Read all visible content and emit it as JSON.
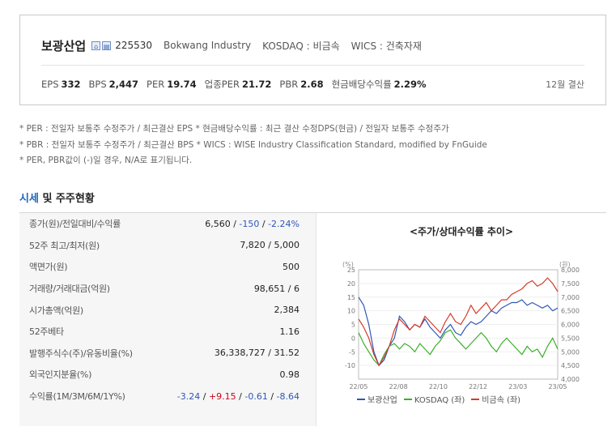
{
  "company": {
    "name": "보광산업",
    "code": "225530",
    "name_en": "Bokwang Industry",
    "market": "KOSDAQ : 비금속",
    "wics": "WICS : 건축자재",
    "fiscal": "12월 결산",
    "indicators": [
      {
        "label": "EPS",
        "value": "332"
      },
      {
        "label": "BPS",
        "value": "2,447"
      },
      {
        "label": "PER",
        "value": "19.74"
      },
      {
        "label": "업종PER",
        "value": "21.72"
      },
      {
        "label": "PBR",
        "value": "2.68"
      },
      {
        "label": "현금배당수익률",
        "value": "2.29%"
      }
    ]
  },
  "notes": [
    "* PER : 전일자 보통주 수정주가 / 최근결산 EPS * 현금배당수익률 : 최근 결산 수정DPS(현금) / 전일자 보통주 수정주가",
    "* PBR : 전일자 보통주 수정주가 / 최근결산 BPS * WICS : WISE Industry Classification Standard, modified by FnGuide",
    "* PER, PBR값이 (-)일 경우, N/A로 표기됩니다."
  ],
  "section": {
    "title_a": "시세",
    "title_b": " 및 주주현황"
  },
  "table": [
    {
      "label": "종가(원)/전일대비/수익률",
      "v1": "6,560",
      "s1": " / ",
      "v2": "-150",
      "s2": " / ",
      "v3": "-2.24%",
      "c2": "down",
      "c3": "down"
    },
    {
      "label": "52주 최고/최저(원)",
      "v1": "7,820 / 5,000"
    },
    {
      "label": "액면가(원)",
      "v1": "500"
    },
    {
      "label": "거래량/거래대금(억원)",
      "v1": "98,651 / 6"
    },
    {
      "label": "시가총액(억원)",
      "v1": "2,384"
    },
    {
      "label": "52주베타",
      "v1": "1.16"
    },
    {
      "label": "발행주식수(주)/유동비율(%)",
      "v1": "36,338,727 / 31.52"
    },
    {
      "label": "외국인지분율(%)",
      "v1": "0.98"
    },
    {
      "label": "수익률(1M/3M/6M/1Y%)",
      "returns": [
        {
          "t": "-3.24",
          "c": "down"
        },
        {
          "t": "+9.15",
          "c": "up"
        },
        {
          "t": "-0.61",
          "c": "down"
        },
        {
          "t": "-8.64",
          "c": "down"
        }
      ]
    }
  ],
  "chart_title": "<주가/상대수익률 추이>",
  "chart_data": {
    "type": "line",
    "left_unit": "(%)",
    "right_unit": "(원)",
    "left_ticks": [
      "25",
      "20",
      "15",
      "10",
      "5",
      "0",
      "-5",
      "-10"
    ],
    "right_ticks": [
      "8,000",
      "7,500",
      "7,000",
      "6,500",
      "6,000",
      "5,500",
      "5,000",
      "4,500",
      "4,000"
    ],
    "x_ticks": [
      "22/05",
      "22/08",
      "22/10",
      "22/12",
      "23/03",
      "23/05"
    ],
    "left_range": [
      -15,
      25
    ],
    "right_range": [
      4000,
      8000
    ],
    "series": [
      {
        "name": "보광산업",
        "axis": "left",
        "color": "#2f57b7",
        "values": [
          15,
          12,
          5,
          -5,
          -10,
          -8,
          -3,
          0,
          8,
          6,
          3,
          5,
          4,
          7,
          4,
          2,
          0,
          3,
          5,
          2,
          1,
          4,
          6,
          5,
          6,
          8,
          10,
          9,
          11,
          12,
          13,
          13,
          14,
          12,
          13,
          12,
          11,
          12,
          10,
          11
        ]
      },
      {
        "name": "KOSDAQ (좌)",
        "axis": "left",
        "color": "#3bae2b",
        "values": [
          2,
          -2,
          -5,
          -8,
          -10,
          -6,
          -3,
          -2,
          -4,
          -2,
          -3,
          -5,
          -2,
          -4,
          -6,
          -3,
          -1,
          2,
          3,
          0,
          -2,
          -4,
          -2,
          0,
          2,
          0,
          -3,
          -5,
          -2,
          0,
          -2,
          -4,
          -6,
          -3,
          -5,
          -4,
          -7,
          -3,
          0,
          -4
        ]
      },
      {
        "name": "비금속 (좌)",
        "axis": "left",
        "color": "#d63b2b",
        "values": [
          7,
          4,
          0,
          -6,
          -10,
          -7,
          -3,
          3,
          7,
          5,
          3,
          5,
          4,
          8,
          6,
          4,
          2,
          6,
          9,
          6,
          5,
          8,
          12,
          9,
          11,
          13,
          10,
          12,
          14,
          14,
          16,
          17,
          18,
          20,
          21,
          19,
          20,
          22,
          20,
          17
        ]
      }
    ]
  }
}
